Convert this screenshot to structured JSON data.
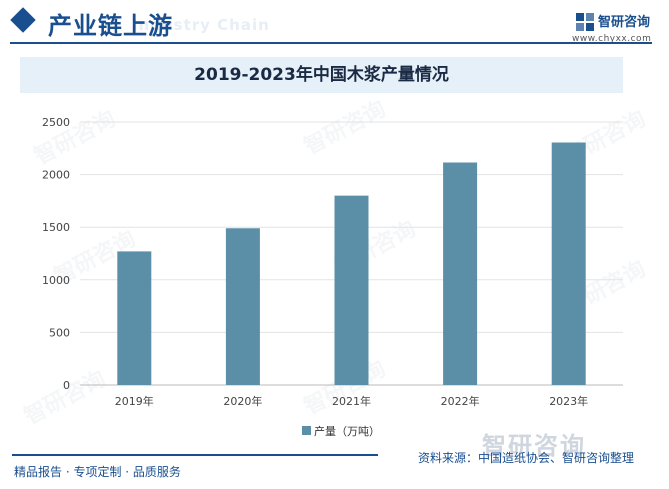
{
  "header": {
    "title": "产业链上游",
    "ghost_text": "Industry Chain"
  },
  "brand": {
    "name": "智研咨询",
    "url": "www.chyxx.com",
    "watermark": "智研咨询"
  },
  "colors": {
    "brand": "#1a4f8f",
    "bar": "#5b8fa8",
    "title_bar": "#e6f0f8"
  },
  "chart_data": {
    "type": "bar",
    "title": "2019-2023年中国木浆产量情况",
    "categories": [
      "2019年",
      "2020年",
      "2021年",
      "2022年",
      "2023年"
    ],
    "series": [
      {
        "name": "产量（万吨）",
        "values": [
          1270,
          1490,
          1800,
          2115,
          2305
        ]
      }
    ],
    "yticks": [
      0,
      500,
      1000,
      1500,
      2000,
      2500
    ],
    "ylim": [
      0,
      2500
    ],
    "xlabel": "",
    "ylabel": "",
    "grid": true,
    "legend": "bottom-center"
  },
  "footer": {
    "left": "精品报告 · 专项定制 · 品质服务",
    "source": "资料来源：中国造纸协会、智研咨询整理"
  }
}
